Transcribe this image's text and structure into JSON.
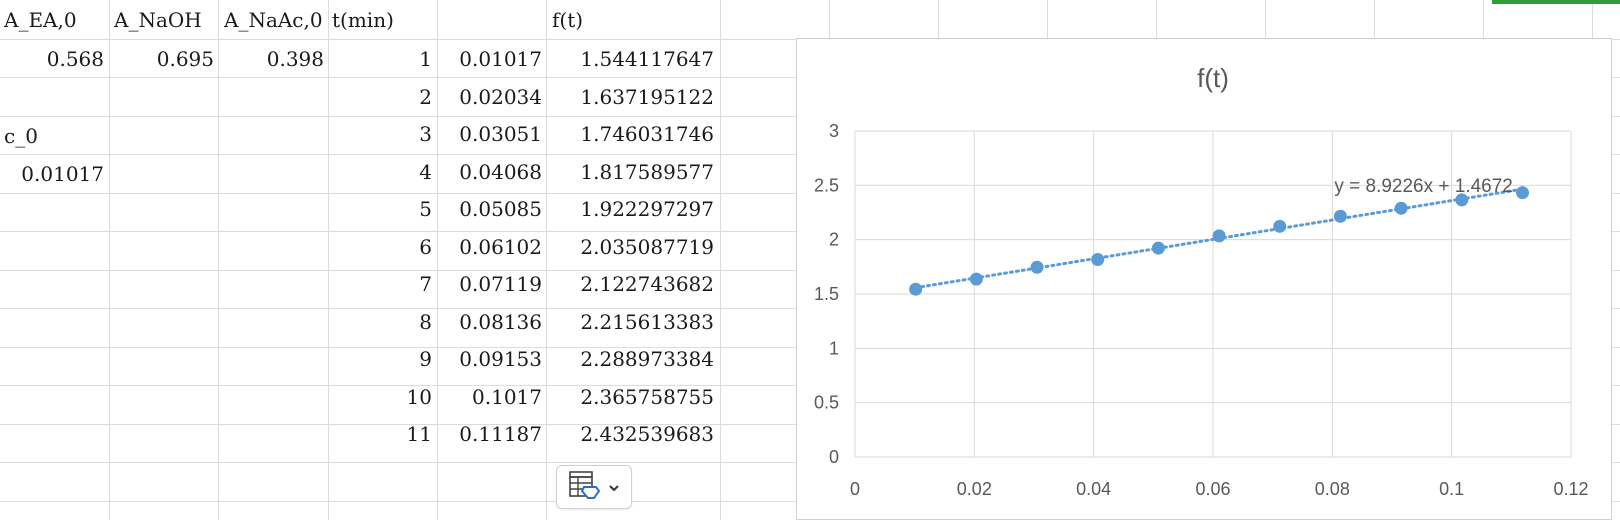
{
  "sheet": {
    "headers": {
      "A": "A_EA,0",
      "B": "A_NaOH",
      "C": "A_NaAc,0",
      "D": "t(min)",
      "F": "f(t)"
    },
    "values": {
      "A2": "0.568",
      "B2": "0.695",
      "C2": "0.398",
      "A4": "c_0",
      "A5": "0.01017"
    },
    "rows": [
      {
        "t": "1",
        "x": "0.01017",
        "f": "1.544117647"
      },
      {
        "t": "2",
        "x": "0.02034",
        "f": "1.637195122"
      },
      {
        "t": "3",
        "x": "0.03051",
        "f": "1.746031746"
      },
      {
        "t": "4",
        "x": "0.04068",
        "f": "1.817589577"
      },
      {
        "t": "5",
        "x": "0.05085",
        "f": "1.922297297"
      },
      {
        "t": "6",
        "x": "0.06102",
        "f": "2.035087719"
      },
      {
        "t": "7",
        "x": "0.07119",
        "f": "2.122743682"
      },
      {
        "t": "8",
        "x": "0.08136",
        "f": "2.215613383"
      },
      {
        "t": "9",
        "x": "0.09153",
        "f": "2.288973384"
      },
      {
        "t": "10",
        "x": "0.1017",
        "f": "2.365758755"
      },
      {
        "t": "11",
        "x": "0.11187",
        "f": "2.432539683"
      }
    ]
  },
  "paste_options": {
    "icon": "paste-options-icon",
    "chevron": "chevron-down-icon"
  },
  "colors": {
    "accent": "#2e9e3a",
    "series": "#5b9bd5",
    "grid": "#d9d9d9",
    "text": "#595959"
  },
  "chart_data": {
    "type": "scatter",
    "title": "f(t)",
    "xlabel": "",
    "ylabel": "",
    "xlim": [
      0,
      0.12
    ],
    "ylim": [
      0,
      3
    ],
    "xticks": [
      "0",
      "0.02",
      "0.04",
      "0.06",
      "0.08",
      "0.1",
      "0.12"
    ],
    "yticks": [
      "0",
      "0.5",
      "1",
      "1.5",
      "2",
      "2.5",
      "3"
    ],
    "grid": true,
    "series": [
      {
        "x": [
          0.01017,
          0.02034,
          0.03051,
          0.04068,
          0.05085,
          0.06102,
          0.07119,
          0.08136,
          0.09153,
          0.1017,
          0.11187
        ],
        "y": [
          1.544117647,
          1.637195122,
          1.746031746,
          1.817589577,
          1.922297297,
          2.035087719,
          2.122743682,
          2.215613383,
          2.288973384,
          2.365758755,
          2.432539683
        ]
      }
    ],
    "trendline": {
      "type": "linear",
      "slope": 8.9226,
      "intercept": 1.4672,
      "label": "y = 8.9226x + 1.4672",
      "style": "dotted"
    }
  }
}
